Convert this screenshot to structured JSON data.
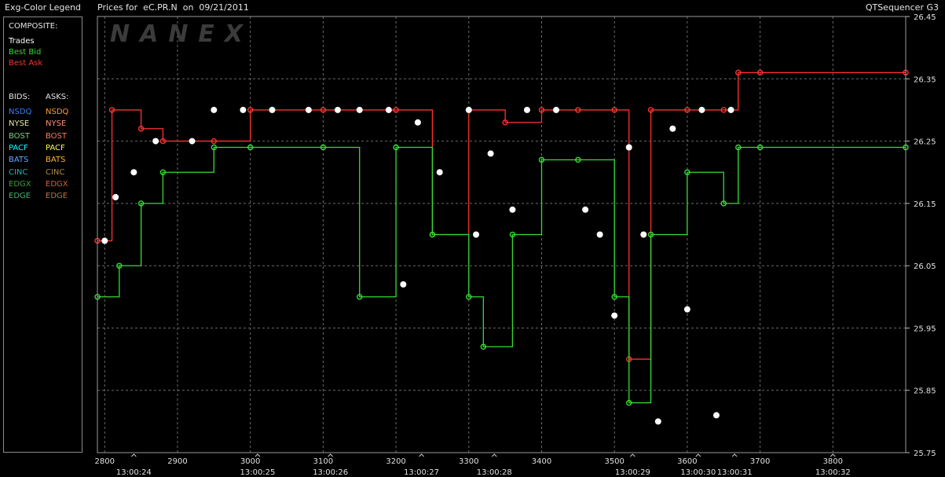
{
  "legend": {
    "title": "Exg-Color Legend",
    "composite_heading": "COMPOSITE:",
    "composite_items": [
      {
        "label": "Trades",
        "color": "#ffffff"
      },
      {
        "label": "Best Bid",
        "color": "#33dd33"
      },
      {
        "label": "Best Ask",
        "color": "#ff3030"
      }
    ],
    "bids_heading": "BIDS:",
    "asks_heading": "ASKS:",
    "bids": [
      {
        "label": "NSDQ",
        "color": "#3a7bff"
      },
      {
        "label": "NYSE",
        "color": "#e8e8a0"
      },
      {
        "label": "BOST",
        "color": "#7fd07f"
      },
      {
        "label": "PACF",
        "color": "#00ffff"
      },
      {
        "label": "BATS",
        "color": "#6aa8ff"
      },
      {
        "label": "CINC",
        "color": "#2ab0b0"
      },
      {
        "label": "EDGX",
        "color": "#3c9a3c"
      },
      {
        "label": "EDGE",
        "color": "#4fae6e"
      }
    ],
    "asks": [
      {
        "label": "NSDQ",
        "color": "#ff9a3a"
      },
      {
        "label": "NYSE",
        "color": "#ff9080"
      },
      {
        "label": "BOST",
        "color": "#ff7a60"
      },
      {
        "label": "PACF",
        "color": "#ffff40"
      },
      {
        "label": "BATS",
        "color": "#ffb040"
      },
      {
        "label": "CINC",
        "color": "#b08a50"
      },
      {
        "label": "EDGX",
        "color": "#d06040"
      },
      {
        "label": "EDGE",
        "color": "#c07050"
      }
    ]
  },
  "header": {
    "title": "Prices for  eC.PR.N  on  09/21/2011",
    "app_name": "QTSequencer G3",
    "watermark": "NANEX"
  },
  "chart_data": {
    "type": "line",
    "title": "Prices for  eC.PR.N  on  09/21/2011",
    "xlabel": "",
    "ylabel": "",
    "xlim": [
      2790,
      3900
    ],
    "ylim": [
      25.75,
      26.45
    ],
    "y_ticks": [
      25.75,
      25.85,
      25.95,
      26.05,
      26.15,
      26.25,
      26.35,
      26.45
    ],
    "y_tick_labels": [
      "25.75",
      "25.85",
      "25.95",
      "26.05",
      "26.15",
      "26.25",
      "26.35",
      "26.45"
    ],
    "x_ticks": [
      2800,
      2900,
      3000,
      3100,
      3200,
      3300,
      3400,
      3500,
      3600,
      3700,
      3800
    ],
    "x_tick_labels": [
      "2800",
      "2900",
      "3000",
      "3100",
      "3200",
      "3300",
      "3400",
      "3500",
      "3600",
      "3700",
      "3800"
    ],
    "time_ticks": [
      {
        "x": 2840,
        "label": "13:00:24"
      },
      {
        "x": 3010,
        "label": "13:00:25"
      },
      {
        "x": 3110,
        "label": "13:00:26"
      },
      {
        "x": 3235,
        "label": "13:00:27"
      },
      {
        "x": 3335,
        "label": "13:00:28"
      },
      {
        "x": 3525,
        "label": "13:00:29"
      },
      {
        "x": 3615,
        "label": "13:00:30"
      },
      {
        "x": 3665,
        "label": "13:00:31"
      },
      {
        "x": 3800,
        "label": "13:00:32"
      }
    ],
    "grid": true,
    "series": [
      {
        "name": "Best Ask",
        "color": "#ff3030",
        "x": [
          2790,
          2810,
          2850,
          2880,
          2950,
          3000,
          3100,
          3200,
          3250,
          3300,
          3350,
          3400,
          3450,
          3500,
          3520,
          3550,
          3600,
          3650,
          3670,
          3700,
          3900
        ],
        "y": [
          26.09,
          26.3,
          26.27,
          26.25,
          26.25,
          26.3,
          26.3,
          26.3,
          26.1,
          26.3,
          26.28,
          26.3,
          26.3,
          26.3,
          25.9,
          26.3,
          26.3,
          26.3,
          26.36,
          26.36,
          26.36
        ]
      },
      {
        "name": "Best Bid",
        "color": "#33dd33",
        "x": [
          2790,
          2820,
          2850,
          2880,
          2950,
          3000,
          3100,
          3150,
          3200,
          3250,
          3300,
          3320,
          3360,
          3400,
          3450,
          3500,
          3520,
          3550,
          3600,
          3650,
          3670,
          3700,
          3900
        ],
        "y": [
          26.0,
          26.05,
          26.15,
          26.2,
          26.24,
          26.24,
          26.24,
          26.0,
          26.24,
          26.1,
          26.0,
          25.92,
          26.1,
          26.22,
          26.22,
          26.0,
          25.83,
          26.1,
          26.2,
          26.15,
          26.24,
          26.24,
          26.24
        ]
      },
      {
        "name": "Trades",
        "color": "#ffffff",
        "x": [
          2800,
          2815,
          2840,
          2870,
          2920,
          2950,
          2990,
          3030,
          3080,
          3120,
          3150,
          3190,
          3210,
          3230,
          3260,
          3300,
          3310,
          3330,
          3360,
          3380,
          3420,
          3460,
          3480,
          3500,
          3520,
          3540,
          3560,
          3580,
          3600,
          3620,
          3640,
          3660
        ],
        "y": [
          26.09,
          26.16,
          26.2,
          26.25,
          26.25,
          26.3,
          26.3,
          26.3,
          26.3,
          26.3,
          26.3,
          26.3,
          26.02,
          26.28,
          26.2,
          26.3,
          26.1,
          26.23,
          26.14,
          26.3,
          26.3,
          26.14,
          26.1,
          25.97,
          26.24,
          26.1,
          25.8,
          26.27,
          25.98,
          26.3,
          25.81,
          26.3
        ]
      }
    ]
  }
}
